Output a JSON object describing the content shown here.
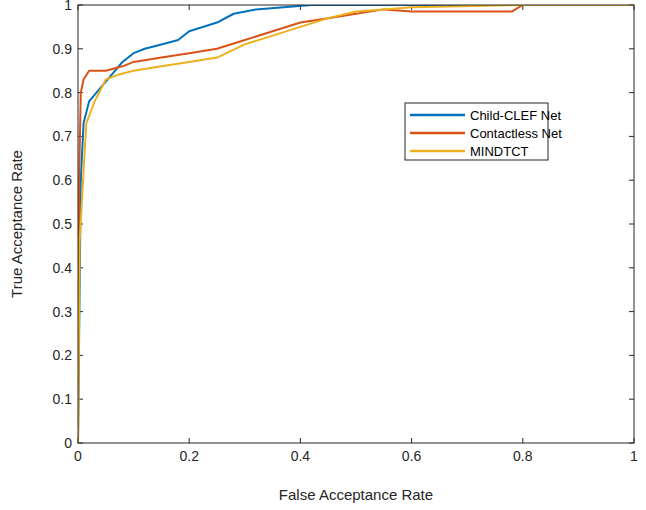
{
  "chart_data": {
    "type": "line",
    "x_label": "False Acceptance Rate",
    "y_label": "True Acceptance Rate",
    "xlim": [
      0,
      1
    ],
    "ylim": [
      0,
      1
    ],
    "xticks": [
      0,
      0.2,
      0.4,
      0.6,
      0.8,
      1
    ],
    "yticks": [
      0,
      0.1,
      0.2,
      0.3,
      0.4,
      0.5,
      0.6,
      0.7,
      0.8,
      0.9,
      1
    ],
    "grid": false,
    "legend": "northeast",
    "series": [
      {
        "name": "Child-CLEF Net",
        "color": "#0072bd",
        "x": [
          0,
          0.005,
          0.01,
          0.02,
          0.04,
          0.06,
          0.08,
          0.1,
          0.12,
          0.15,
          0.18,
          0.2,
          0.25,
          0.28,
          0.32,
          0.42,
          1
        ],
        "values": [
          0,
          0.6,
          0.73,
          0.78,
          0.81,
          0.84,
          0.87,
          0.89,
          0.9,
          0.91,
          0.92,
          0.94,
          0.96,
          0.98,
          0.99,
          1,
          1
        ]
      },
      {
        "name": "Contactless Net",
        "color": "#d95319",
        "x": [
          0,
          0.002,
          0.005,
          0.01,
          0.02,
          0.05,
          0.08,
          0.1,
          0.15,
          0.2,
          0.25,
          0.3,
          0.35,
          0.4,
          0.45,
          0.5,
          0.55,
          0.6,
          0.78,
          0.8,
          1
        ],
        "values": [
          0,
          0.6,
          0.8,
          0.83,
          0.85,
          0.85,
          0.86,
          0.87,
          0.88,
          0.89,
          0.9,
          0.92,
          0.94,
          0.96,
          0.97,
          0.98,
          0.99,
          0.985,
          0.985,
          1,
          1
        ]
      },
      {
        "name": "MINDTCT",
        "color": "#edb120",
        "x": [
          0,
          0.003,
          0.01,
          0.015,
          0.03,
          0.05,
          0.07,
          0.1,
          0.15,
          0.2,
          0.25,
          0.3,
          0.35,
          0.4,
          0.45,
          0.5,
          0.55,
          0.6,
          0.8,
          1
        ],
        "values": [
          0,
          0.46,
          0.62,
          0.73,
          0.78,
          0.83,
          0.84,
          0.85,
          0.86,
          0.87,
          0.88,
          0.91,
          0.93,
          0.95,
          0.97,
          0.985,
          0.99,
          0.995,
          1,
          1
        ]
      }
    ]
  }
}
